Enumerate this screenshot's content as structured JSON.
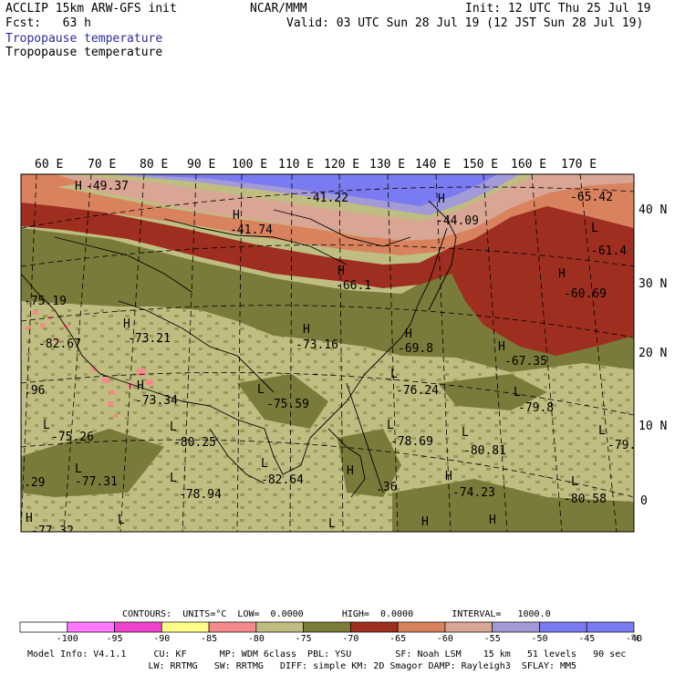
{
  "header": {
    "model_title": "ACCLIP 15km ARW-GFS init",
    "org": "NCAR/MMM",
    "init": "Init: 12 UTC Thu 25 Jul 19",
    "fcst": "Fcst:   63 h",
    "valid": "Valid: 03 UTC Sun 28 Jul 19 (12 JST Sun 28 Jul 19)",
    "field_1": "Tropopause temperature",
    "field_2": "Tropopause temperature"
  },
  "colors": {
    "sea_low": "#c0bd82",
    "land_low": "#7a7b3a",
    "warm_red": "#9e2e20",
    "orange": "#d9825e",
    "pink": "#d9a594",
    "lavender": "#a39bd8",
    "blue": "#7b7bf1",
    "hot_pink": "#f58a8a"
  },
  "map": {
    "lon_labels": [
      "60 E",
      "70 E",
      "80 E",
      "90 E",
      "100 E",
      "110 E",
      "120 E",
      "130 E",
      "140 E",
      "150 E",
      "160 E",
      "170 E"
    ],
    "lat_labels": [
      "40 N",
      "30 N",
      "20 N",
      "10 N",
      "0"
    ],
    "extrema": [
      {
        "mark": "H",
        "value": "-49.37"
      },
      {
        "mark": "",
        "value": "-41.22"
      },
      {
        "mark": "H",
        "value": "-41.74"
      },
      {
        "mark": "H",
        "value": "-44.09"
      },
      {
        "mark": "",
        "value": "-65.42"
      },
      {
        "mark": "L",
        "value": "-61.4"
      },
      {
        "mark": "H",
        "value": "-60.69"
      },
      {
        "mark": "H",
        "value": "-66.1"
      },
      {
        "mark": "",
        "value": "-75.19"
      },
      {
        "mark": "",
        "value": "-82.67"
      },
      {
        "mark": "H",
        "value": "-73.21"
      },
      {
        "mark": "H",
        "value": "-73.16"
      },
      {
        "mark": "H",
        "value": "-69.8"
      },
      {
        "mark": "H",
        "value": "-67.35"
      },
      {
        "mark": "",
        "value": ".96"
      },
      {
        "mark": "H",
        "value": "-73.34"
      },
      {
        "mark": "L",
        "value": "-75.59"
      },
      {
        "mark": "L",
        "value": "-76.24"
      },
      {
        "mark": "L",
        "value": "-79.8"
      },
      {
        "mark": "L",
        "value": "-75.26"
      },
      {
        "mark": "L",
        "value": "-80.25"
      },
      {
        "mark": "L",
        "value": "-78.69"
      },
      {
        "mark": "L",
        "value": "-80.81"
      },
      {
        "mark": "L",
        "value": "-79."
      },
      {
        "mark": "",
        "value": ".29"
      },
      {
        "mark": "L",
        "value": "-77.31"
      },
      {
        "mark": "L",
        "value": "-82.64"
      },
      {
        "mark": "L",
        "value": "-78.94"
      },
      {
        "mark": "H",
        "value": ".36"
      },
      {
        "mark": "H",
        "value": "-74.23"
      },
      {
        "mark": "L",
        "value": "-80.58"
      },
      {
        "mark": "H",
        "value": "-77.32"
      },
      {
        "mark": "L",
        "value": ""
      },
      {
        "mark": "H",
        "value": ""
      },
      {
        "mark": "H",
        "value": ""
      },
      {
        "mark": "L",
        "value": ""
      }
    ]
  },
  "contours": {
    "text": "CONTOURS:  UNITS=°C  LOW=  0.0000       HIGH=  0.0000       INTERVAL=   1000.0"
  },
  "colorbar": {
    "colors": [
      "#ffffff",
      "#ff77ff",
      "#ee44cc",
      "#ffff88",
      "#f58a8a",
      "#c0bd82",
      "#7a7b3a",
      "#9e2e20",
      "#d9825e",
      "#d9a594",
      "#a39bd8",
      "#7b7bf1",
      "#7b7bf1"
    ],
    "labels": [
      "-100",
      "-95",
      "-90",
      "-85",
      "-80",
      "-75",
      "-70",
      "-65",
      "-60",
      "-55",
      "-50",
      "-45",
      "-40"
    ],
    "unit": "°C"
  },
  "footer": {
    "line1": "Model Info: V4.1.1     CU: KF      MP: WDM 6class  PBL: YSU        SF: Noah LSM    15 km   51 levels   90 sec",
    "line2": "                      LW: RRTMG   SW: RRTMG   DIFF: simple KM: 2D Smagor DAMP: Rayleigh3  SFLAY: MM5"
  }
}
